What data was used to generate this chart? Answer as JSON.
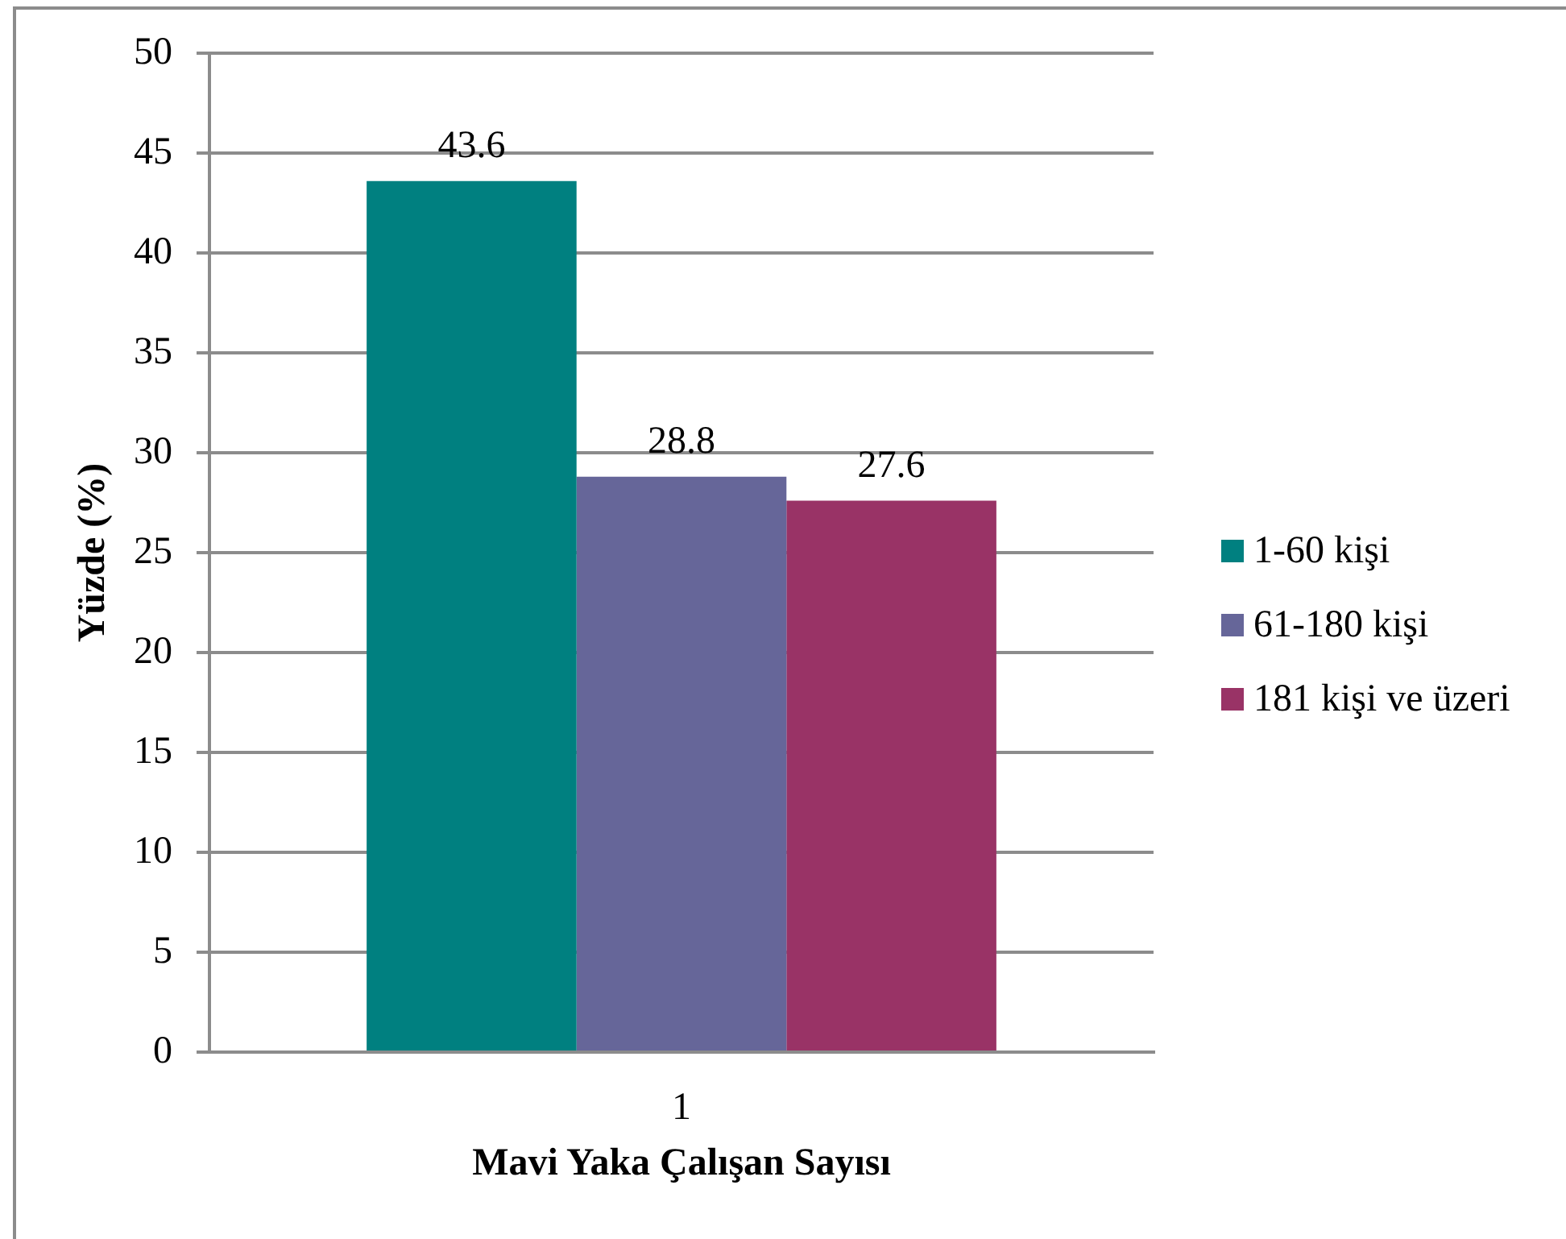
{
  "chart_data": {
    "type": "bar",
    "xlabel": "Mavi Yaka Çalışan Sayısı",
    "ylabel": "Yüzde (%)",
    "categories": [
      "1"
    ],
    "series": [
      {
        "name": "1-60 kişi",
        "color": "#008080",
        "values": [
          43.6
        ]
      },
      {
        "name": "61-180 kişi",
        "color": "#666699",
        "values": [
          28.8
        ]
      },
      {
        "name": "181 kişi ve üzeri",
        "color": "#993366",
        "values": [
          27.6
        ]
      }
    ],
    "ylim": [
      0,
      50
    ],
    "yticks": [
      0,
      5,
      10,
      15,
      20,
      25,
      30,
      35,
      40,
      45,
      50
    ],
    "grid": "y",
    "legend": "right",
    "data_labels": true
  }
}
